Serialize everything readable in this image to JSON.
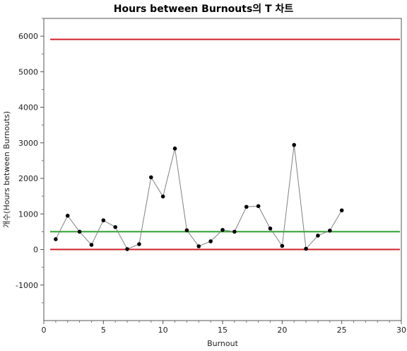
{
  "chart_data": {
    "type": "line",
    "title": "Hours between Burnouts의 T 차트",
    "xlabel": "Burnout",
    "ylabel": "개수(Hours between Burnouts)",
    "xlim": [
      0,
      30
    ],
    "ylim": [
      -2000,
      6500
    ],
    "x_ticks": [
      0,
      5,
      10,
      15,
      20,
      25,
      30
    ],
    "y_ticks": [
      -1000,
      0,
      1000,
      2000,
      3000,
      4000,
      5000,
      6000
    ],
    "grid": false,
    "series": [
      {
        "color": "#808080",
        "marker_color": "#000000",
        "x": [
          1,
          2,
          3,
          4,
          5,
          6,
          7,
          8,
          9,
          10,
          11,
          12,
          13,
          14,
          15,
          16,
          17,
          18,
          19,
          20,
          21,
          22,
          23,
          24,
          25
        ],
        "values": [
          290,
          950,
          500,
          130,
          820,
          630,
          10,
          150,
          2030,
          1490,
          2840,
          540,
          90,
          230,
          550,
          500,
          1200,
          1220,
          590,
          100,
          2940,
          20,
          390,
          530,
          1100
        ]
      }
    ],
    "reference_lines": [
      {
        "kind": "ucl",
        "y": 5910,
        "color": "#d0202e"
      },
      {
        "kind": "center",
        "y": 500,
        "color": "#2ca02c"
      },
      {
        "kind": "lcl",
        "y": 0,
        "color": "#d0202e"
      }
    ]
  }
}
